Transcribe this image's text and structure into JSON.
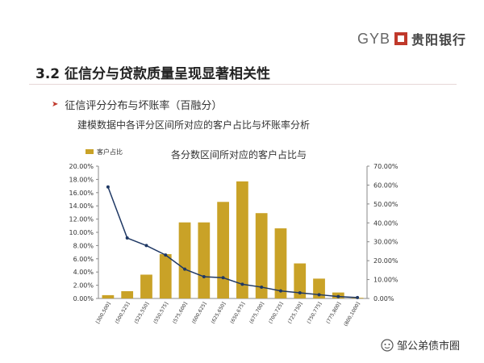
{
  "header": {
    "brand_latin": "GYB",
    "brand_cn": "贵阳银行",
    "logo_icon": "square-bank-logo-icon",
    "logo_color": "#c0392b"
  },
  "slide": {
    "title": "3.2 征信分与贷款质量呈现显著相关性",
    "bullet_icon": "chevron-right-icon",
    "bullet": "征信评分分布与坏账率（百融分）",
    "description": "建模数据中各评分区间所对应的客户占比与坏账率分析"
  },
  "watermark": {
    "icon": "wechat-icon",
    "text": "邹公弟债市圈"
  },
  "chart_data": {
    "type": "bar",
    "title": "各分数区间所对应的客户占比与",
    "categories": [
      "[300,500]",
      "(500,525]",
      "(525,550]",
      "(550,575]",
      "(575,600]",
      "(600,625]",
      "(625,650]",
      "(650,675]",
      "(675,700]",
      "(700,725]",
      "(725,750]",
      "(750,775]",
      "(775,800]",
      "(800,1000]"
    ],
    "series": [
      {
        "name": "客户占比",
        "type": "bar",
        "axis": "left",
        "color": "#c9a227",
        "values": [
          0.5,
          1.1,
          3.6,
          6.7,
          11.5,
          11.5,
          14.6,
          17.7,
          12.9,
          10.6,
          5.3,
          3.0,
          0.9,
          0.1
        ]
      },
      {
        "type": "line",
        "axis": "right",
        "color": "#1f3864",
        "values": [
          59.0,
          32.0,
          28.0,
          23.0,
          15.5,
          11.5,
          11.0,
          7.5,
          6.0,
          4.0,
          3.0,
          2.0,
          1.0,
          0.5
        ]
      }
    ],
    "y_left": {
      "min": 0,
      "max": 20,
      "step": 2,
      "ticks": [
        "0.00%",
        "2.00%",
        "4.00%",
        "6.00%",
        "8.00%",
        "10.00%",
        "12.00%",
        "14.00%",
        "16.00%",
        "18.00%",
        "20.00%"
      ]
    },
    "y_right": {
      "min": 0,
      "max": 70,
      "step": 10,
      "ticks": [
        "0.00%",
        "10.00%",
        "20.00%",
        "30.00%",
        "40.00%",
        "50.00%",
        "60.00%",
        "70.00%"
      ]
    },
    "legend_position": "top-left",
    "grid": false
  }
}
